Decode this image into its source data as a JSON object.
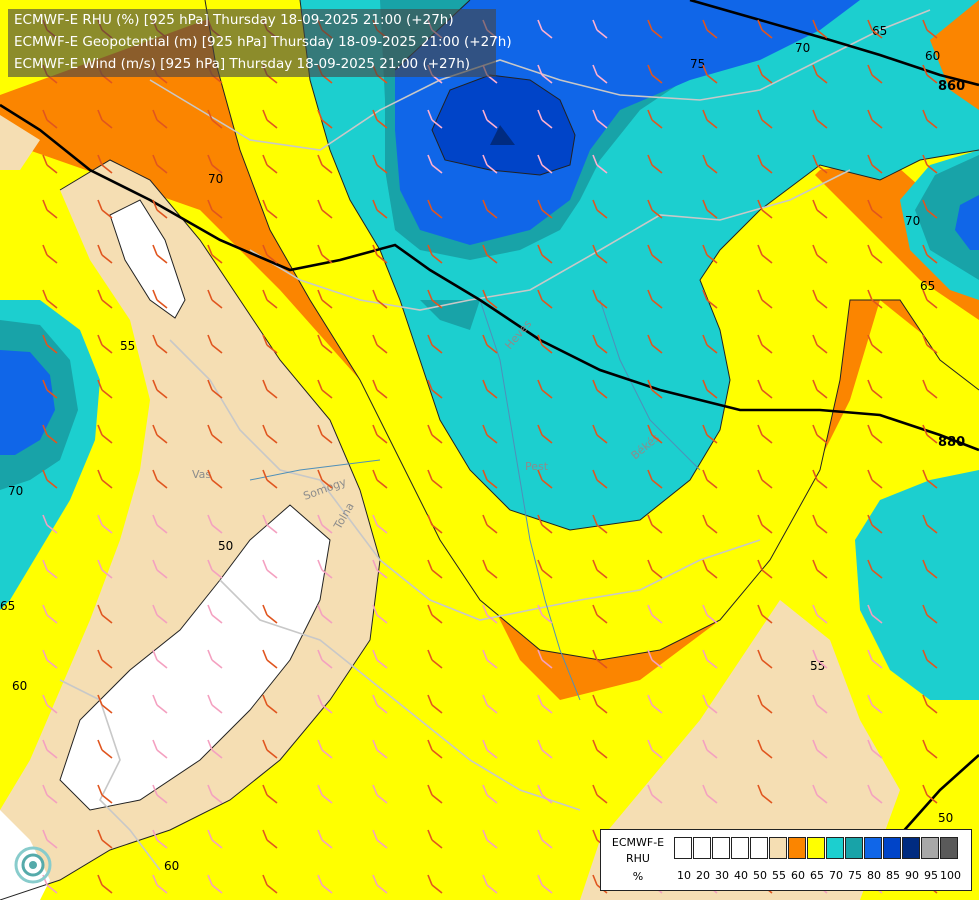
{
  "title_lines": [
    "ECMWF-E RHU (%) [925 hPa] Thursday 18-09-2025 21:00 (+27h)",
    "ECMWF-E Geopotential (m) [925 hPa] Thursday 18-09-2025 21:00 (+27h)",
    "ECMWF-E Wind (m/s) [925 hPa] Thursday 18-09-2025 21:00 (+27h)"
  ],
  "legend": {
    "title": [
      "ECMWF-E",
      "RHU",
      "%"
    ],
    "ticks": [
      "10",
      "20",
      "30",
      "40",
      "50",
      "55",
      "60",
      "65",
      "70",
      "75",
      "80",
      "85",
      "90",
      "95",
      "100"
    ],
    "colors": [
      "#ffffff",
      "#ffffff",
      "#ffffff",
      "#ffffff",
      "#ffffff",
      "#f5deb3",
      "#fb8500",
      "#ffff00",
      "#1ccfcf",
      "#18a3a8",
      "#1066e8",
      "#0044c8",
      "#002b80",
      "#a8a8a8",
      "#5a5a5a"
    ]
  },
  "contour_labels": {
    "rhu": [
      "50",
      "55",
      "55",
      "60",
      "60",
      "60",
      "65",
      "65",
      "65",
      "70",
      "70",
      "70",
      "70",
      "75",
      "50"
    ],
    "geopotential": [
      "860",
      "880"
    ]
  },
  "place_labels": [
    "Vas",
    "Somogy",
    "Tolna",
    "Heves",
    "Pest",
    "Békés"
  ],
  "colors": {
    "white": "#ffffff",
    "tan": "#f5deb3",
    "orange": "#fb8500",
    "yellow": "#ffff00",
    "cyan": "#1ccfcf",
    "teal": "#18a3a8",
    "blue": "#1066e8",
    "darkblue": "#0044c8",
    "navy": "#002b80"
  }
}
